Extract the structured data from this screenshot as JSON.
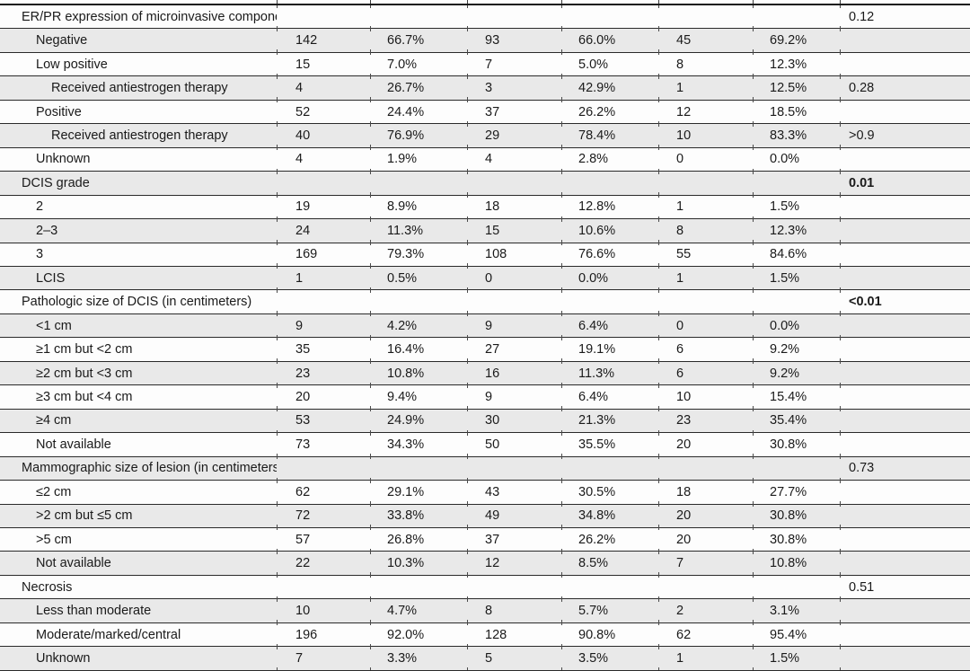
{
  "colors": {
    "row_stripe": "#e9e9e9",
    "row_plain": "#fdfdfd",
    "rule": "#2a2a2a",
    "text": "#1a1a1a"
  },
  "table": {
    "rows": [
      {
        "label": "ER/PR expression of microinvasive component",
        "indent": 0,
        "section": true,
        "values": [],
        "p": "0.12",
        "p_bold": false
      },
      {
        "label": "Negative",
        "indent": 1,
        "section": false,
        "values": [
          "142",
          "66.7%",
          "93",
          "66.0%",
          "45",
          "69.2%"
        ],
        "p": "",
        "p_bold": false
      },
      {
        "label": "Low positive",
        "indent": 1,
        "section": false,
        "values": [
          "15",
          "7.0%",
          "7",
          "5.0%",
          "8",
          "12.3%"
        ],
        "p": "",
        "p_bold": false
      },
      {
        "label": "Received antiestrogen therapy",
        "indent": 2,
        "section": false,
        "values": [
          "4",
          "26.7%",
          "3",
          "42.9%",
          "1",
          "12.5%"
        ],
        "p": "0.28",
        "p_bold": false
      },
      {
        "label": "Positive",
        "indent": 1,
        "section": false,
        "values": [
          "52",
          "24.4%",
          "37",
          "26.2%",
          "12",
          "18.5%"
        ],
        "p": "",
        "p_bold": false
      },
      {
        "label": "Received antiestrogen therapy",
        "indent": 2,
        "section": false,
        "values": [
          "40",
          "76.9%",
          "29",
          "78.4%",
          "10",
          "83.3%"
        ],
        "p": ">0.9",
        "p_bold": false
      },
      {
        "label": "Unknown",
        "indent": 1,
        "section": false,
        "values": [
          "4",
          "1.9%",
          "4",
          "2.8%",
          "0",
          "0.0%"
        ],
        "p": "",
        "p_bold": false
      },
      {
        "label": "DCIS grade",
        "indent": 0,
        "section": true,
        "values": [],
        "p": "0.01",
        "p_bold": true
      },
      {
        "label": "2",
        "indent": 1,
        "section": false,
        "values": [
          "19",
          "8.9%",
          "18",
          "12.8%",
          "1",
          "1.5%"
        ],
        "p": "",
        "p_bold": false
      },
      {
        "label": "2–3",
        "indent": 1,
        "section": false,
        "values": [
          "24",
          "11.3%",
          "15",
          "10.6%",
          "8",
          "12.3%"
        ],
        "p": "",
        "p_bold": false
      },
      {
        "label": "3",
        "indent": 1,
        "section": false,
        "values": [
          "169",
          "79.3%",
          "108",
          "76.6%",
          "55",
          "84.6%"
        ],
        "p": "",
        "p_bold": false
      },
      {
        "label": "LCIS",
        "indent": 1,
        "section": false,
        "values": [
          "1",
          "0.5%",
          "0",
          "0.0%",
          "1",
          "1.5%"
        ],
        "p": "",
        "p_bold": false
      },
      {
        "label": "Pathologic size of DCIS (in centimeters)",
        "indent": 0,
        "section": true,
        "values": [],
        "p": "<0.01",
        "p_bold": true
      },
      {
        "label": "<1 cm",
        "indent": 1,
        "section": false,
        "values": [
          "9",
          "4.2%",
          "9",
          "6.4%",
          "0",
          "0.0%"
        ],
        "p": "",
        "p_bold": false
      },
      {
        "label": "≥1 cm but <2 cm",
        "indent": 1,
        "section": false,
        "values": [
          "35",
          "16.4%",
          "27",
          "19.1%",
          "6",
          "9.2%"
        ],
        "p": "",
        "p_bold": false
      },
      {
        "label": "≥2 cm but <3 cm",
        "indent": 1,
        "section": false,
        "values": [
          "23",
          "10.8%",
          "16",
          "11.3%",
          "6",
          "9.2%"
        ],
        "p": "",
        "p_bold": false
      },
      {
        "label": "≥3 cm but <4 cm",
        "indent": 1,
        "section": false,
        "values": [
          "20",
          "9.4%",
          "9",
          "6.4%",
          "10",
          "15.4%"
        ],
        "p": "",
        "p_bold": false
      },
      {
        "label": "≥4 cm",
        "indent": 1,
        "section": false,
        "values": [
          "53",
          "24.9%",
          "30",
          "21.3%",
          "23",
          "35.4%"
        ],
        "p": "",
        "p_bold": false
      },
      {
        "label": "Not available",
        "indent": 1,
        "section": false,
        "values": [
          "73",
          "34.3%",
          "50",
          "35.5%",
          "20",
          "30.8%"
        ],
        "p": "",
        "p_bold": false
      },
      {
        "label": "Mammographic size of lesion (in centimeters)",
        "indent": 0,
        "section": true,
        "values": [],
        "p": "0.73",
        "p_bold": false
      },
      {
        "label": "≤2 cm",
        "indent": 1,
        "section": false,
        "values": [
          "62",
          "29.1%",
          "43",
          "30.5%",
          "18",
          "27.7%"
        ],
        "p": "",
        "p_bold": false
      },
      {
        "label": ">2 cm but ≤5 cm",
        "indent": 1,
        "section": false,
        "values": [
          "72",
          "33.8%",
          "49",
          "34.8%",
          "20",
          "30.8%"
        ],
        "p": "",
        "p_bold": false
      },
      {
        "label": ">5 cm",
        "indent": 1,
        "section": false,
        "values": [
          "57",
          "26.8%",
          "37",
          "26.2%",
          "20",
          "30.8%"
        ],
        "p": "",
        "p_bold": false
      },
      {
        "label": "Not available",
        "indent": 1,
        "section": false,
        "values": [
          "22",
          "10.3%",
          "12",
          "8.5%",
          "7",
          "10.8%"
        ],
        "p": "",
        "p_bold": false
      },
      {
        "label": "Necrosis",
        "indent": 0,
        "section": true,
        "values": [],
        "p": "0.51",
        "p_bold": false
      },
      {
        "label": "Less than moderate",
        "indent": 1,
        "section": false,
        "values": [
          "10",
          "4.7%",
          "8",
          "5.7%",
          "2",
          "3.1%"
        ],
        "p": "",
        "p_bold": false
      },
      {
        "label": "Moderate/marked/central",
        "indent": 1,
        "section": false,
        "values": [
          "196",
          "92.0%",
          "128",
          "90.8%",
          "62",
          "95.4%"
        ],
        "p": "",
        "p_bold": false
      },
      {
        "label": "Unknown",
        "indent": 1,
        "section": false,
        "values": [
          "7",
          "3.3%",
          "5",
          "3.5%",
          "1",
          "1.5%"
        ],
        "p": "",
        "p_bold": false
      }
    ]
  }
}
